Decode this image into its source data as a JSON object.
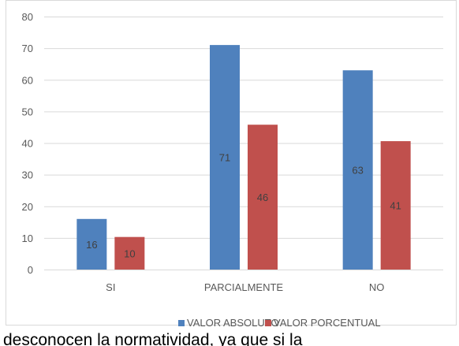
{
  "chart_data": {
    "type": "bar",
    "categories": [
      "SI",
      "PARCIALMENTE",
      "NO"
    ],
    "series": [
      {
        "name": "VALOR ABSOLUTO",
        "values": [
          16,
          71,
          63
        ],
        "color": "#4F81BD"
      },
      {
        "name": "VALOR PORCENTUAL",
        "values": [
          10.3,
          45.8,
          40.6
        ],
        "labels": [
          "10",
          "46",
          "41"
        ],
        "color": "#C0504D"
      }
    ],
    "data_labels": [
      [
        "16",
        "71",
        "63"
      ],
      [
        "10",
        "46",
        "41"
      ]
    ],
    "yticks": [
      "0",
      "10",
      "20",
      "30",
      "40",
      "50",
      "60",
      "70",
      "80"
    ],
    "ylim": [
      0,
      80
    ],
    "grid": true,
    "legend_position": "bottom"
  },
  "caption_text": "desconocen la normatividad, ya que si la"
}
